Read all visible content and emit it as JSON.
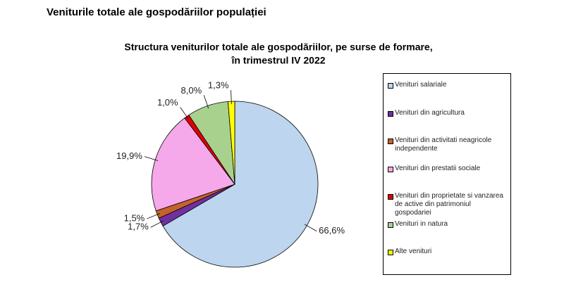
{
  "page_title": "Veniturile totale ale gospodăriilor populației",
  "chart_data": {
    "type": "pie",
    "title": [
      "Structura veniturilor totale ale gospodăriilor, pe surse de formare,",
      "în trimestrul IV 2022"
    ],
    "categories": [
      "Venituri salariale",
      "Venituri din agricultura",
      "Venituri din activitati neagricole independente",
      "Venituri din prestatii sociale",
      "Venituri din proprietate si vanzarea de active din patrimoniul gospodariei",
      "Venituri in natura",
      "Alte venituri"
    ],
    "values": [
      66.6,
      1.7,
      1.5,
      19.9,
      1.0,
      8.0,
      1.3
    ],
    "value_labels": [
      "66,6%",
      "1,7%",
      "1,5%",
      "19,9%",
      "1,0%",
      "8,0%",
      "1,3%"
    ],
    "colors": [
      "#bdd5ee",
      "#7030a0",
      "#c5622b",
      "#f5a8ea",
      "#e00000",
      "#a9d18e",
      "#ffff00"
    ],
    "legend": "right"
  }
}
